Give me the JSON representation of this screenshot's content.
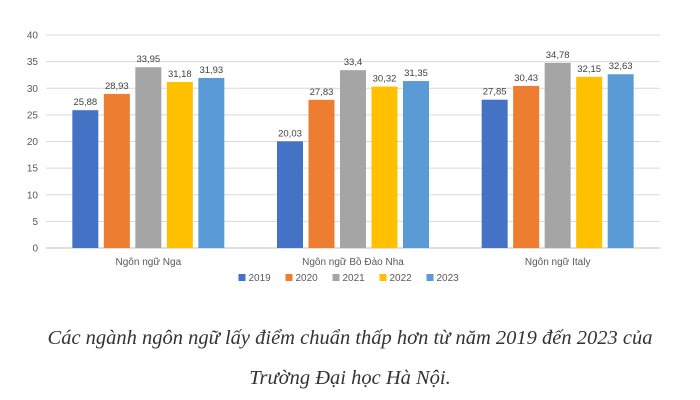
{
  "chart_data": {
    "type": "bar",
    "categories": [
      "Ngôn ngữ Nga",
      "Ngôn ngữ Bồ Đào Nha",
      "Ngôn ngữ Italy"
    ],
    "series": [
      {
        "name": "2019",
        "color": "#4472C4",
        "values": [
          25.88,
          20.03,
          27.85
        ],
        "labels": [
          "25,88",
          "20,03",
          "27,85"
        ]
      },
      {
        "name": "2020",
        "color": "#ED7D31",
        "values": [
          28.93,
          27.83,
          30.43
        ],
        "labels": [
          "28,93",
          "27,83",
          "30,43"
        ]
      },
      {
        "name": "2021",
        "color": "#A5A5A5",
        "values": [
          33.95,
          33.4,
          34.78
        ],
        "labels": [
          "33,95",
          "33,4",
          "34,78"
        ]
      },
      {
        "name": "2022",
        "color": "#FFC000",
        "values": [
          31.18,
          30.32,
          32.15
        ],
        "labels": [
          "31,18",
          "30,32",
          "32,15"
        ]
      },
      {
        "name": "2023",
        "color": "#5B9BD5",
        "values": [
          31.93,
          31.35,
          32.63
        ],
        "labels": [
          "31,93",
          "31,35",
          "32,63"
        ]
      }
    ],
    "yticks": [
      "0",
      "5",
      "10",
      "15",
      "20",
      "25",
      "30",
      "35",
      "40"
    ],
    "ylim": [
      0,
      40
    ],
    "grid": true,
    "legend": "bottom",
    "title": "",
    "xlabel": "",
    "ylabel": ""
  },
  "caption": {
    "line1": "Các ngành ngôn ngữ lấy điểm chuẩn thấp hơn từ năm 2019 đến 2023 của",
    "line2": "Trường Đại học Hà Nội."
  }
}
